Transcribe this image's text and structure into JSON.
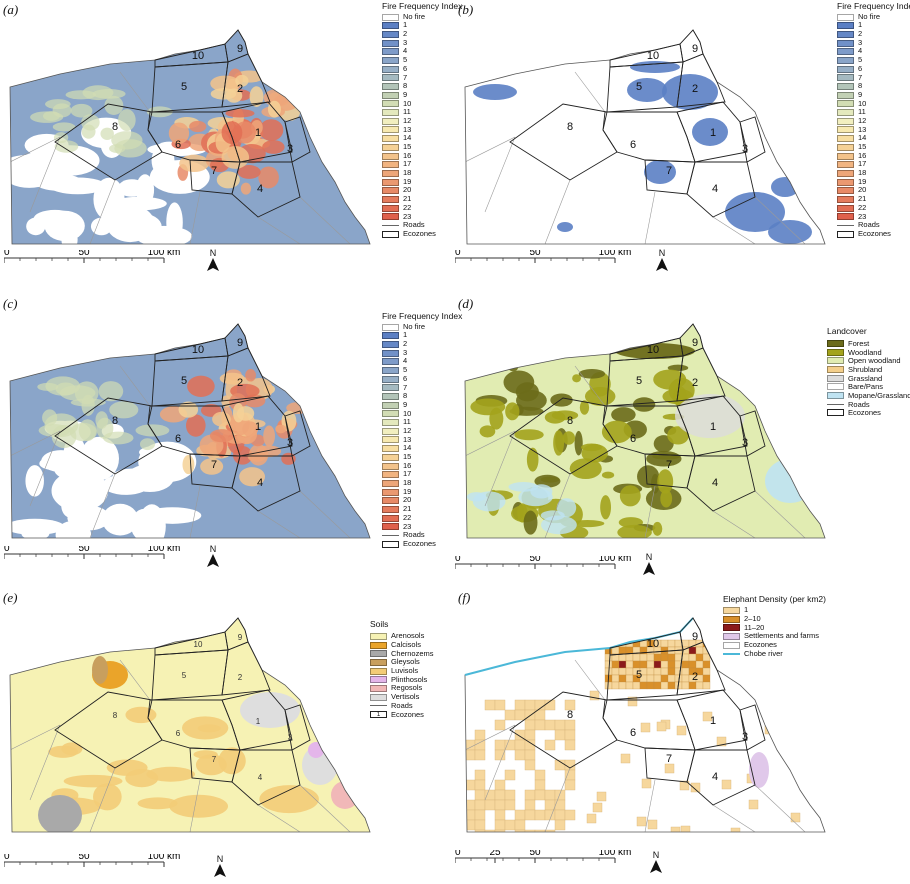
{
  "panels": {
    "a": {
      "label": "(a)"
    },
    "b": {
      "label": "(b)"
    },
    "c": {
      "label": "(c)"
    },
    "d": {
      "label": "(d)"
    },
    "e": {
      "label": "(e)"
    },
    "f": {
      "label": "(f)"
    }
  },
  "zones": [
    "1",
    "2",
    "3",
    "4",
    "5",
    "6",
    "7",
    "8",
    "9",
    "10"
  ],
  "fire_legend": {
    "title": "Fire Frequency Index",
    "items": [
      {
        "label": "No fire",
        "color": "#ffffff"
      },
      {
        "label": "1",
        "color": "#5b7fc4"
      },
      {
        "label": "2",
        "color": "#6688c6"
      },
      {
        "label": "3",
        "color": "#7191c8"
      },
      {
        "label": "4",
        "color": "#7e9bc9"
      },
      {
        "label": "5",
        "color": "#8aa5c9"
      },
      {
        "label": "6",
        "color": "#97afc6"
      },
      {
        "label": "7",
        "color": "#a5bac1"
      },
      {
        "label": "8",
        "color": "#b3c5b9"
      },
      {
        "label": "9",
        "color": "#c2d0b4"
      },
      {
        "label": "10",
        "color": "#d2ddb4"
      },
      {
        "label": "11",
        "color": "#e4e9bd"
      },
      {
        "label": "12",
        "color": "#f2efbf"
      },
      {
        "label": "13",
        "color": "#f7e9b0"
      },
      {
        "label": "14",
        "color": "#f7dea2"
      },
      {
        "label": "15",
        "color": "#f5d196"
      },
      {
        "label": "16",
        "color": "#f3c38b"
      },
      {
        "label": "17",
        "color": "#f1b481"
      },
      {
        "label": "18",
        "color": "#eea679"
      },
      {
        "label": "19",
        "color": "#eb9870"
      },
      {
        "label": "20",
        "color": "#e88a67"
      },
      {
        "label": "21",
        "color": "#e57c5e"
      },
      {
        "label": "22",
        "color": "#e26e55"
      },
      {
        "label": "23",
        "color": "#df604c"
      }
    ],
    "roads": "Roads",
    "ecozones": "Ecozones"
  },
  "landcover_legend": {
    "title": "Landcover",
    "items": [
      {
        "label": "Forest",
        "color": "#6b6b1a"
      },
      {
        "label": "Woodland",
        "color": "#a3a31c"
      },
      {
        "label": "Open woodland",
        "color": "#e1ecb2"
      },
      {
        "label": "Shrubland",
        "color": "#f4cf8b"
      },
      {
        "label": "Grassland",
        "color": "#dcdcdc"
      },
      {
        "label": "Bare/Pans",
        "color": "#ffffff"
      },
      {
        "label": "Mopane/Grassland",
        "color": "#bfe3f2"
      }
    ],
    "roads": "Roads",
    "ecozones": "Ecozones"
  },
  "soils_legend": {
    "title": "Soils",
    "items": [
      {
        "label": "Arenosols",
        "color": "#f6f2b4"
      },
      {
        "label": "Calcisols",
        "color": "#eaa42a"
      },
      {
        "label": "Chernozems",
        "color": "#a9a9a9"
      },
      {
        "label": "Gleysols",
        "color": "#c89f5e"
      },
      {
        "label": "Luvisols",
        "color": "#f3cc78"
      },
      {
        "label": "Plinthosols",
        "color": "#e4b6ea"
      },
      {
        "label": "Regosols",
        "color": "#f1b8b8"
      },
      {
        "label": "Vertisols",
        "color": "#dedede"
      }
    ],
    "roads": "Roads",
    "ecozone_num": "1",
    "ecozones": "Ecozones"
  },
  "elephant_legend": {
    "title": "Elephant Density (per km2)",
    "items": [
      {
        "label": "1",
        "color": "#f6d79d"
      },
      {
        "label": "2–10",
        "color": "#d9902a"
      },
      {
        "label": "11–20",
        "color": "#8b1a1a"
      },
      {
        "label": "Settlements and farms",
        "color": "#e0c8ea"
      },
      {
        "label": "Ecozones",
        "color": "#ffffff"
      }
    ],
    "chobe": "Chobe river"
  },
  "scale": {
    "t0": "0",
    "t1": "50",
    "t2": "100 km"
  },
  "scale_f": {
    "t0": "0",
    "t1": "25",
    "t2": "50",
    "t3": "100 km"
  },
  "north": "N"
}
